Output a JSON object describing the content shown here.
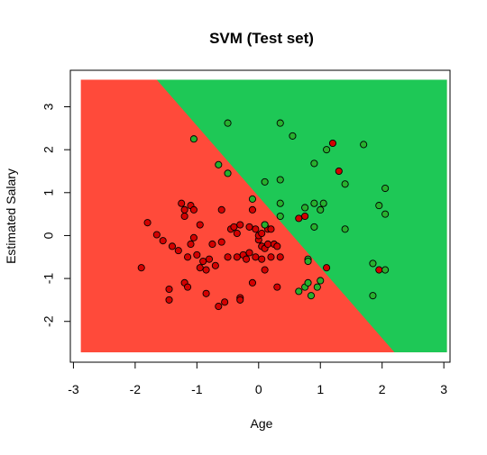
{
  "chart_data": {
    "type": "scatter",
    "title": "SVM (Test set)",
    "xlabel": "Age",
    "ylabel": "Estimated Salary",
    "xlim": [
      -3.05,
      3.1
    ],
    "ylim": [
      -2.95,
      3.85
    ],
    "grid_range": {
      "x": [
        -2.88,
        3.05
      ],
      "y": [
        -2.72,
        3.63
      ]
    },
    "x_ticks": [
      -3,
      -2,
      -1,
      0,
      1,
      2,
      3
    ],
    "y_ticks": [
      -2,
      -1,
      0,
      1,
      2,
      3
    ],
    "decision_boundary": [
      [
        -1.65,
        3.63
      ],
      [
        2.2,
        -2.72
      ]
    ],
    "region_colors": {
      "class_0": "#FF4A3A",
      "class_1": "#1EC856"
    },
    "point_colors": {
      "class_0": "#D40000",
      "class_1": "#28B02E"
    },
    "series": [
      {
        "name": "0",
        "points": [
          [
            -1.9,
            -0.75
          ],
          [
            -1.8,
            0.3
          ],
          [
            -1.65,
            0.02
          ],
          [
            -1.55,
            -0.12
          ],
          [
            -1.45,
            -1.25
          ],
          [
            -1.45,
            -1.5
          ],
          [
            -1.4,
            -0.25
          ],
          [
            -1.3,
            -0.35
          ],
          [
            -1.25,
            0.75
          ],
          [
            -1.2,
            0.6
          ],
          [
            -1.2,
            0.45
          ],
          [
            -1.2,
            -1.1
          ],
          [
            -1.15,
            -0.5
          ],
          [
            -1.15,
            -1.2
          ],
          [
            -1.1,
            -0.2
          ],
          [
            -1.1,
            0.7
          ],
          [
            -1.05,
            0.6
          ],
          [
            -1.05,
            -0.05
          ],
          [
            -1.0,
            -0.45
          ],
          [
            -0.95,
            -0.75
          ],
          [
            -0.95,
            0.25
          ],
          [
            -0.9,
            -0.6
          ],
          [
            -0.85,
            -1.35
          ],
          [
            -0.85,
            -0.8
          ],
          [
            -0.8,
            -0.55
          ],
          [
            -0.75,
            -0.2
          ],
          [
            -0.7,
            -0.7
          ],
          [
            -0.65,
            -1.65
          ],
          [
            -0.6,
            0.6
          ],
          [
            -0.6,
            -0.15
          ],
          [
            -0.55,
            -1.55
          ],
          [
            -0.5,
            -0.5
          ],
          [
            -0.45,
            0.15
          ],
          [
            -0.4,
            0.2
          ],
          [
            -0.35,
            -0.5
          ],
          [
            -0.35,
            0.05
          ],
          [
            -0.3,
            -1.45
          ],
          [
            -0.3,
            -1.5
          ],
          [
            -0.3,
            0.25
          ],
          [
            -0.25,
            -0.45
          ],
          [
            -0.2,
            -0.55
          ],
          [
            -0.15,
            -0.4
          ],
          [
            -0.15,
            0.2
          ],
          [
            -0.1,
            -1.1
          ],
          [
            -0.1,
            0.6
          ],
          [
            -0.05,
            -0.5
          ],
          [
            -0.05,
            0.15
          ],
          [
            0.0,
            -0.1
          ],
          [
            0.0,
            0.0
          ],
          [
            0.05,
            -0.25
          ],
          [
            0.05,
            -0.55
          ],
          [
            0.05,
            0.05
          ],
          [
            0.1,
            -0.8
          ],
          [
            0.1,
            -0.3
          ],
          [
            0.1,
            0.25
          ],
          [
            0.15,
            -0.2
          ],
          [
            0.15,
            0.15
          ],
          [
            0.2,
            -0.5
          ],
          [
            0.2,
            0.15
          ],
          [
            0.25,
            -0.2
          ],
          [
            0.3,
            -1.2
          ],
          [
            0.3,
            -0.25
          ],
          [
            0.35,
            -0.5
          ],
          [
            0.65,
            0.4
          ],
          [
            0.75,
            0.45
          ],
          [
            1.1,
            -0.75
          ],
          [
            1.2,
            2.15
          ],
          [
            1.3,
            1.5
          ],
          [
            1.95,
            -0.8
          ]
        ]
      },
      {
        "name": "1",
        "points": [
          [
            -1.05,
            2.25
          ],
          [
            -0.65,
            1.65
          ],
          [
            -0.5,
            1.45
          ],
          [
            -0.5,
            2.62
          ],
          [
            -0.1,
            0.85
          ],
          [
            0.1,
            1.25
          ],
          [
            0.1,
            0.25
          ],
          [
            0.35,
            2.62
          ],
          [
            0.35,
            0.75
          ],
          [
            0.35,
            1.3
          ],
          [
            0.35,
            0.45
          ],
          [
            0.55,
            2.32
          ],
          [
            0.65,
            -1.3
          ],
          [
            0.75,
            -1.2
          ],
          [
            0.75,
            0.65
          ],
          [
            0.8,
            -0.55
          ],
          [
            0.8,
            -0.6
          ],
          [
            0.8,
            -1.1
          ],
          [
            0.85,
            -1.4
          ],
          [
            0.9,
            1.68
          ],
          [
            0.9,
            0.75
          ],
          [
            0.9,
            0.2
          ],
          [
            0.95,
            -1.2
          ],
          [
            1.0,
            0.6
          ],
          [
            1.0,
            -1.05
          ],
          [
            1.05,
            0.75
          ],
          [
            1.1,
            2.0
          ],
          [
            1.4,
            1.2
          ],
          [
            1.4,
            0.15
          ],
          [
            1.7,
            2.12
          ],
          [
            1.85,
            -0.65
          ],
          [
            1.85,
            -1.4
          ],
          [
            1.95,
            0.7
          ],
          [
            2.05,
            0.5
          ],
          [
            2.05,
            1.1
          ],
          [
            2.05,
            -0.8
          ]
        ]
      }
    ]
  }
}
